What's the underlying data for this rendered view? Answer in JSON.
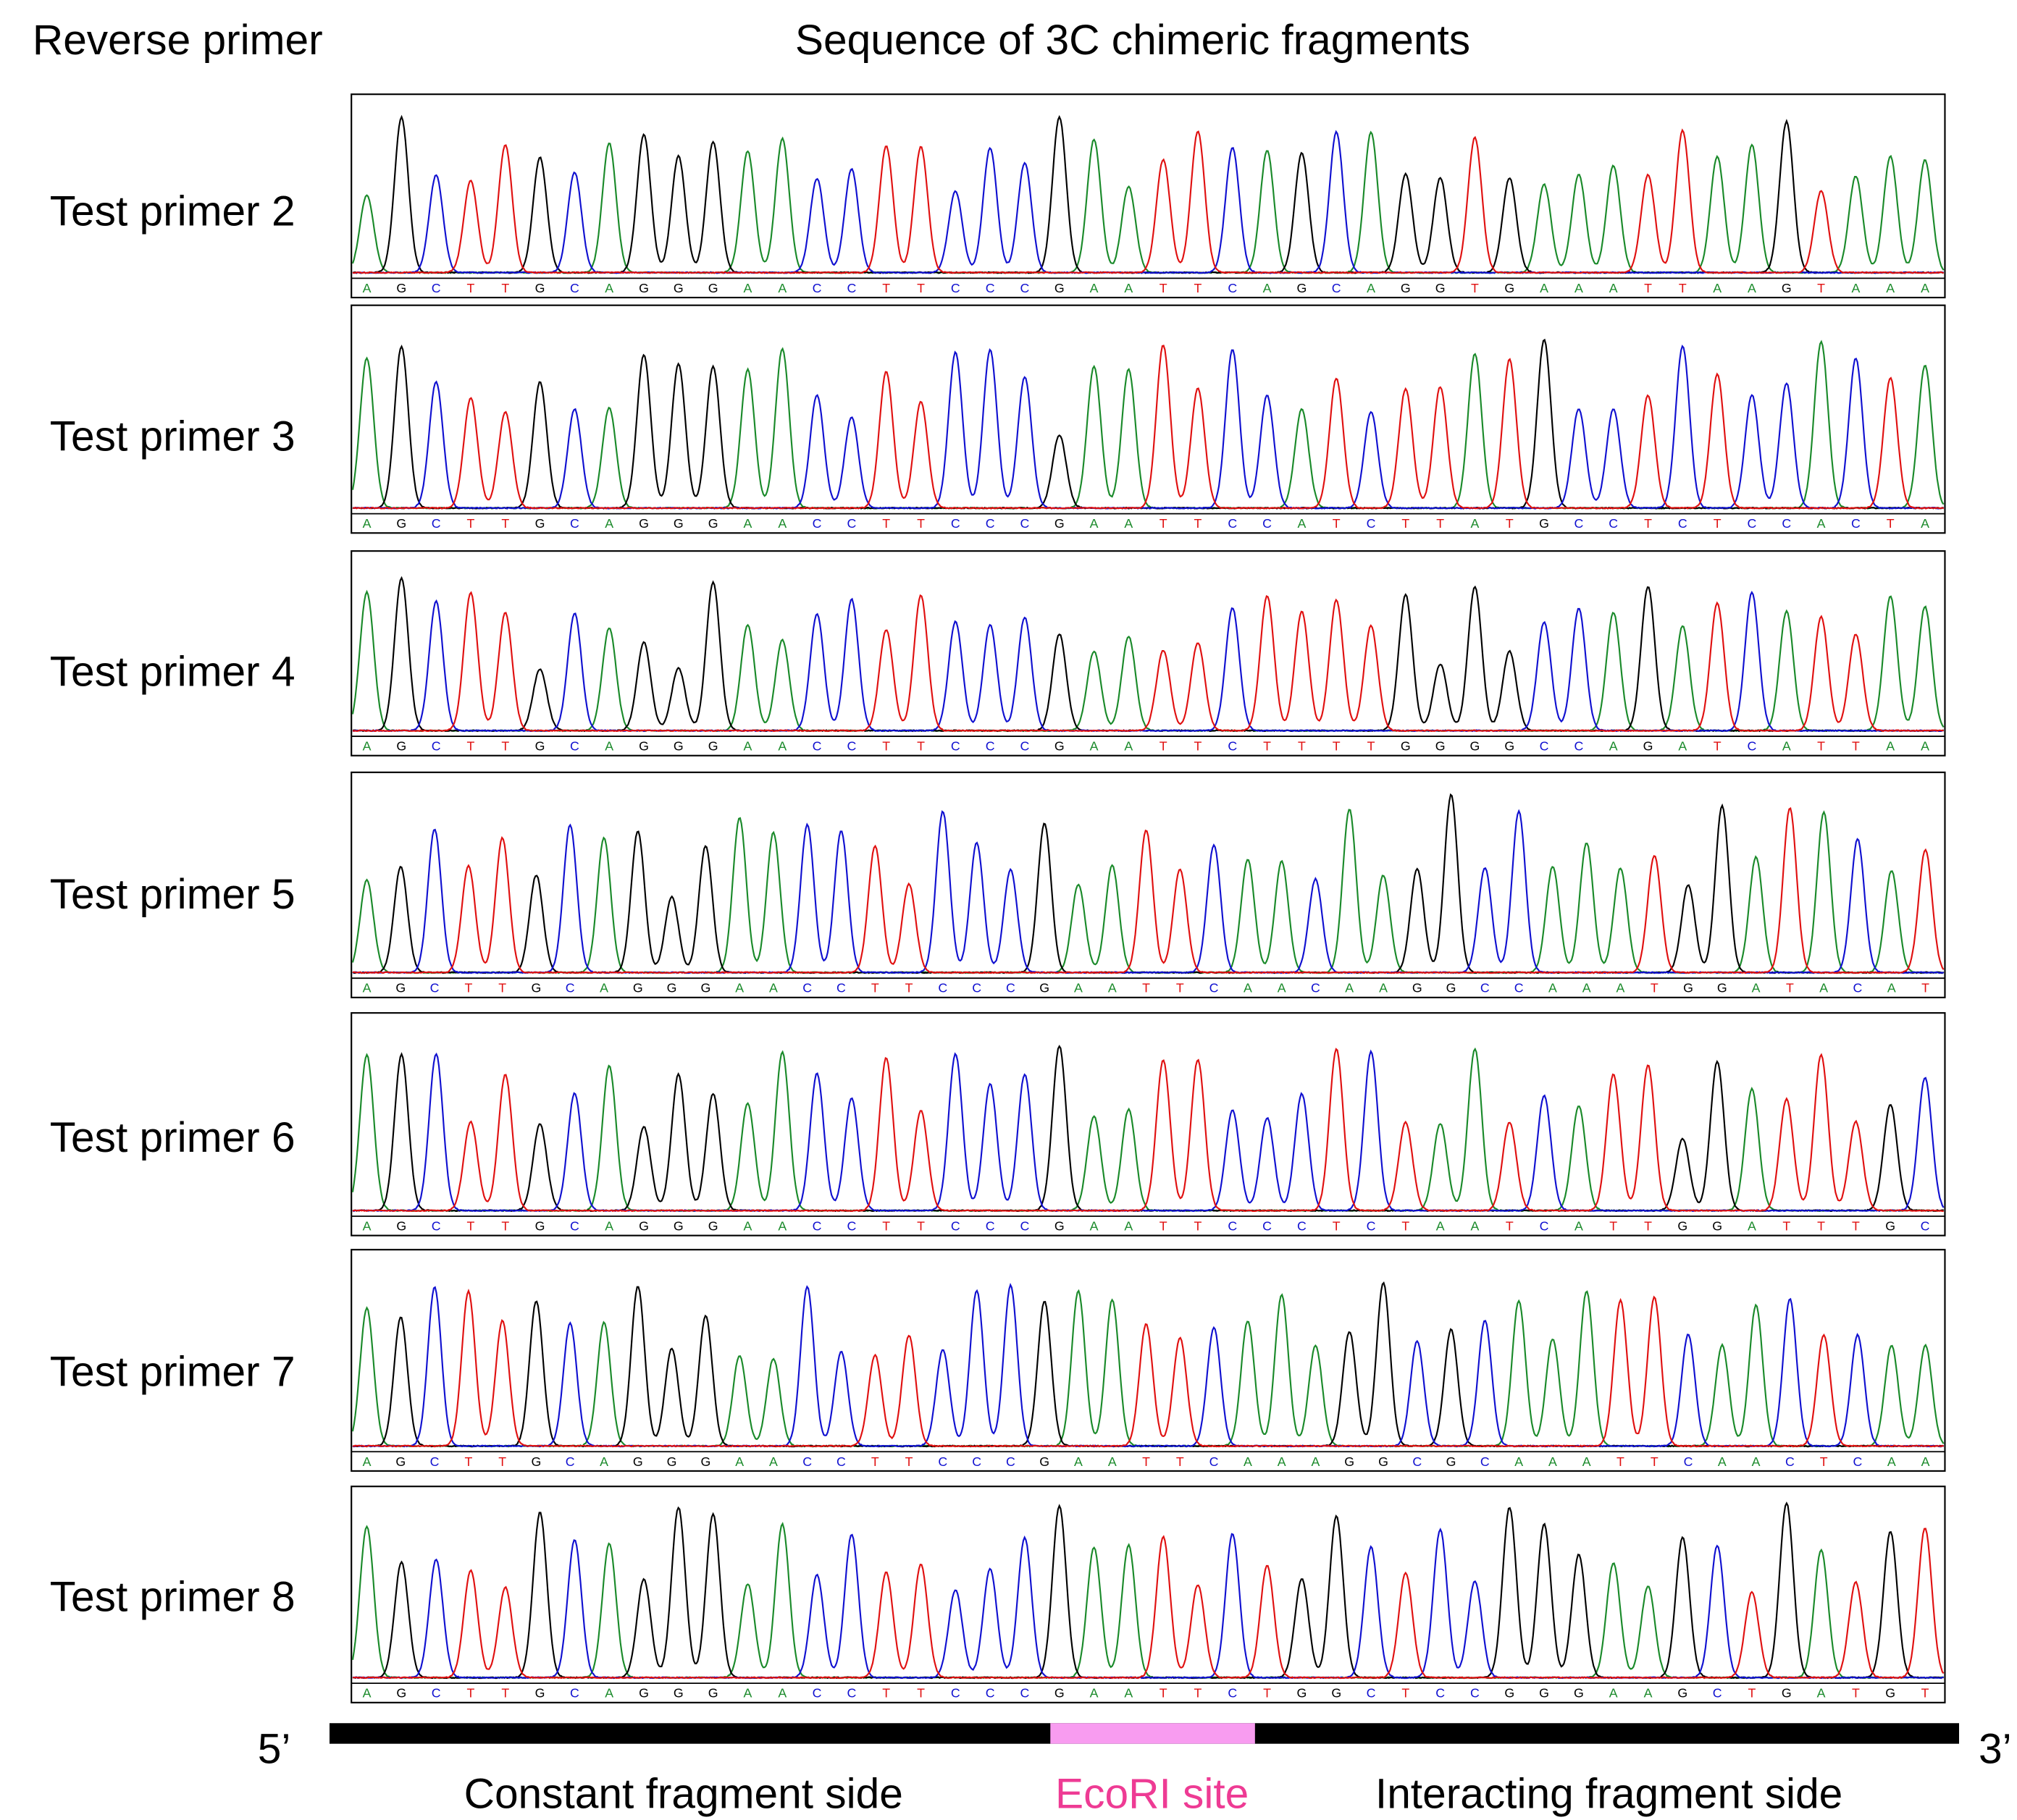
{
  "header": {
    "left": "Reverse primer",
    "title": "Sequence of 3C chimeric fragments"
  },
  "panels": [
    {
      "label": "Test primer 2",
      "bases": [
        "A",
        "G",
        "C",
        "T",
        "T",
        "G",
        "C",
        "A",
        "G",
        "G",
        "G",
        "A",
        "A",
        "C",
        "C",
        "T",
        "T",
        "C",
        "C",
        "C",
        "G",
        "A",
        "A",
        "T",
        "T",
        "C",
        "A",
        "G",
        "C",
        "A",
        "G",
        "G",
        "T",
        "G",
        "A",
        "A",
        "A",
        "T",
        "T",
        "A",
        "A",
        "G",
        "T",
        "A",
        "A",
        "A"
      ]
    },
    {
      "label": "Test primer 3",
      "bases": [
        "A",
        "G",
        "C",
        "T",
        "T",
        "G",
        "C",
        "A",
        "G",
        "G",
        "G",
        "A",
        "A",
        "C",
        "C",
        "T",
        "T",
        "C",
        "C",
        "C",
        "G",
        "A",
        "A",
        "T",
        "T",
        "C",
        "C",
        "A",
        "T",
        "C",
        "T",
        "T",
        "A",
        "T",
        "G",
        "C",
        "C",
        "T",
        "C",
        "T",
        "C",
        "C",
        "A",
        "C",
        "T",
        "A"
      ]
    },
    {
      "label": "Test primer 4",
      "bases": [
        "A",
        "G",
        "C",
        "T",
        "T",
        "G",
        "C",
        "A",
        "G",
        "G",
        "G",
        "A",
        "A",
        "C",
        "C",
        "T",
        "T",
        "C",
        "C",
        "C",
        "G",
        "A",
        "A",
        "T",
        "T",
        "C",
        "T",
        "T",
        "T",
        "T",
        "G",
        "G",
        "G",
        "G",
        "C",
        "C",
        "A",
        "G",
        "A",
        "T",
        "C",
        "A",
        "T",
        "T",
        "A",
        "A"
      ]
    },
    {
      "label": "Test primer 5",
      "bases": [
        "A",
        "G",
        "C",
        "T",
        "T",
        "G",
        "C",
        "A",
        "G",
        "G",
        "G",
        "A",
        "A",
        "C",
        "C",
        "T",
        "T",
        "C",
        "C",
        "C",
        "G",
        "A",
        "A",
        "T",
        "T",
        "C",
        "A",
        "A",
        "C",
        "A",
        "A",
        "G",
        "G",
        "C",
        "C",
        "A",
        "A",
        "A",
        "T",
        "G",
        "G",
        "A",
        "T",
        "A",
        "C",
        "A",
        "T"
      ]
    },
    {
      "label": "Test primer 6",
      "bases": [
        "A",
        "G",
        "C",
        "T",
        "T",
        "G",
        "C",
        "A",
        "G",
        "G",
        "G",
        "A",
        "A",
        "C",
        "C",
        "T",
        "T",
        "C",
        "C",
        "C",
        "G",
        "A",
        "A",
        "T",
        "T",
        "C",
        "C",
        "C",
        "T",
        "C",
        "T",
        "A",
        "A",
        "T",
        "C",
        "A",
        "T",
        "T",
        "G",
        "G",
        "A",
        "T",
        "T",
        "T",
        "G",
        "C"
      ]
    },
    {
      "label": "Test primer 7",
      "bases": [
        "A",
        "G",
        "C",
        "T",
        "T",
        "G",
        "C",
        "A",
        "G",
        "G",
        "G",
        "A",
        "A",
        "C",
        "C",
        "T",
        "T",
        "C",
        "C",
        "C",
        "G",
        "A",
        "A",
        "T",
        "T",
        "C",
        "A",
        "A",
        "A",
        "G",
        "G",
        "C",
        "G",
        "C",
        "A",
        "A",
        "A",
        "T",
        "T",
        "C",
        "A",
        "A",
        "C",
        "T",
        "C",
        "A",
        "A"
      ]
    },
    {
      "label": "Test primer 8",
      "bases": [
        "A",
        "G",
        "C",
        "T",
        "T",
        "G",
        "C",
        "A",
        "G",
        "G",
        "G",
        "A",
        "A",
        "C",
        "C",
        "T",
        "T",
        "C",
        "C",
        "C",
        "G",
        "A",
        "A",
        "T",
        "T",
        "C",
        "T",
        "G",
        "G",
        "C",
        "T",
        "C",
        "C",
        "G",
        "G",
        "G",
        "A",
        "A",
        "G",
        "C",
        "T",
        "G",
        "A",
        "T",
        "G",
        "T"
      ]
    }
  ],
  "footer": {
    "five": "5’",
    "three": "3’",
    "left": "Constant fragment side",
    "middle": "EcoRI site",
    "right": "Interacting fragment side"
  }
}
